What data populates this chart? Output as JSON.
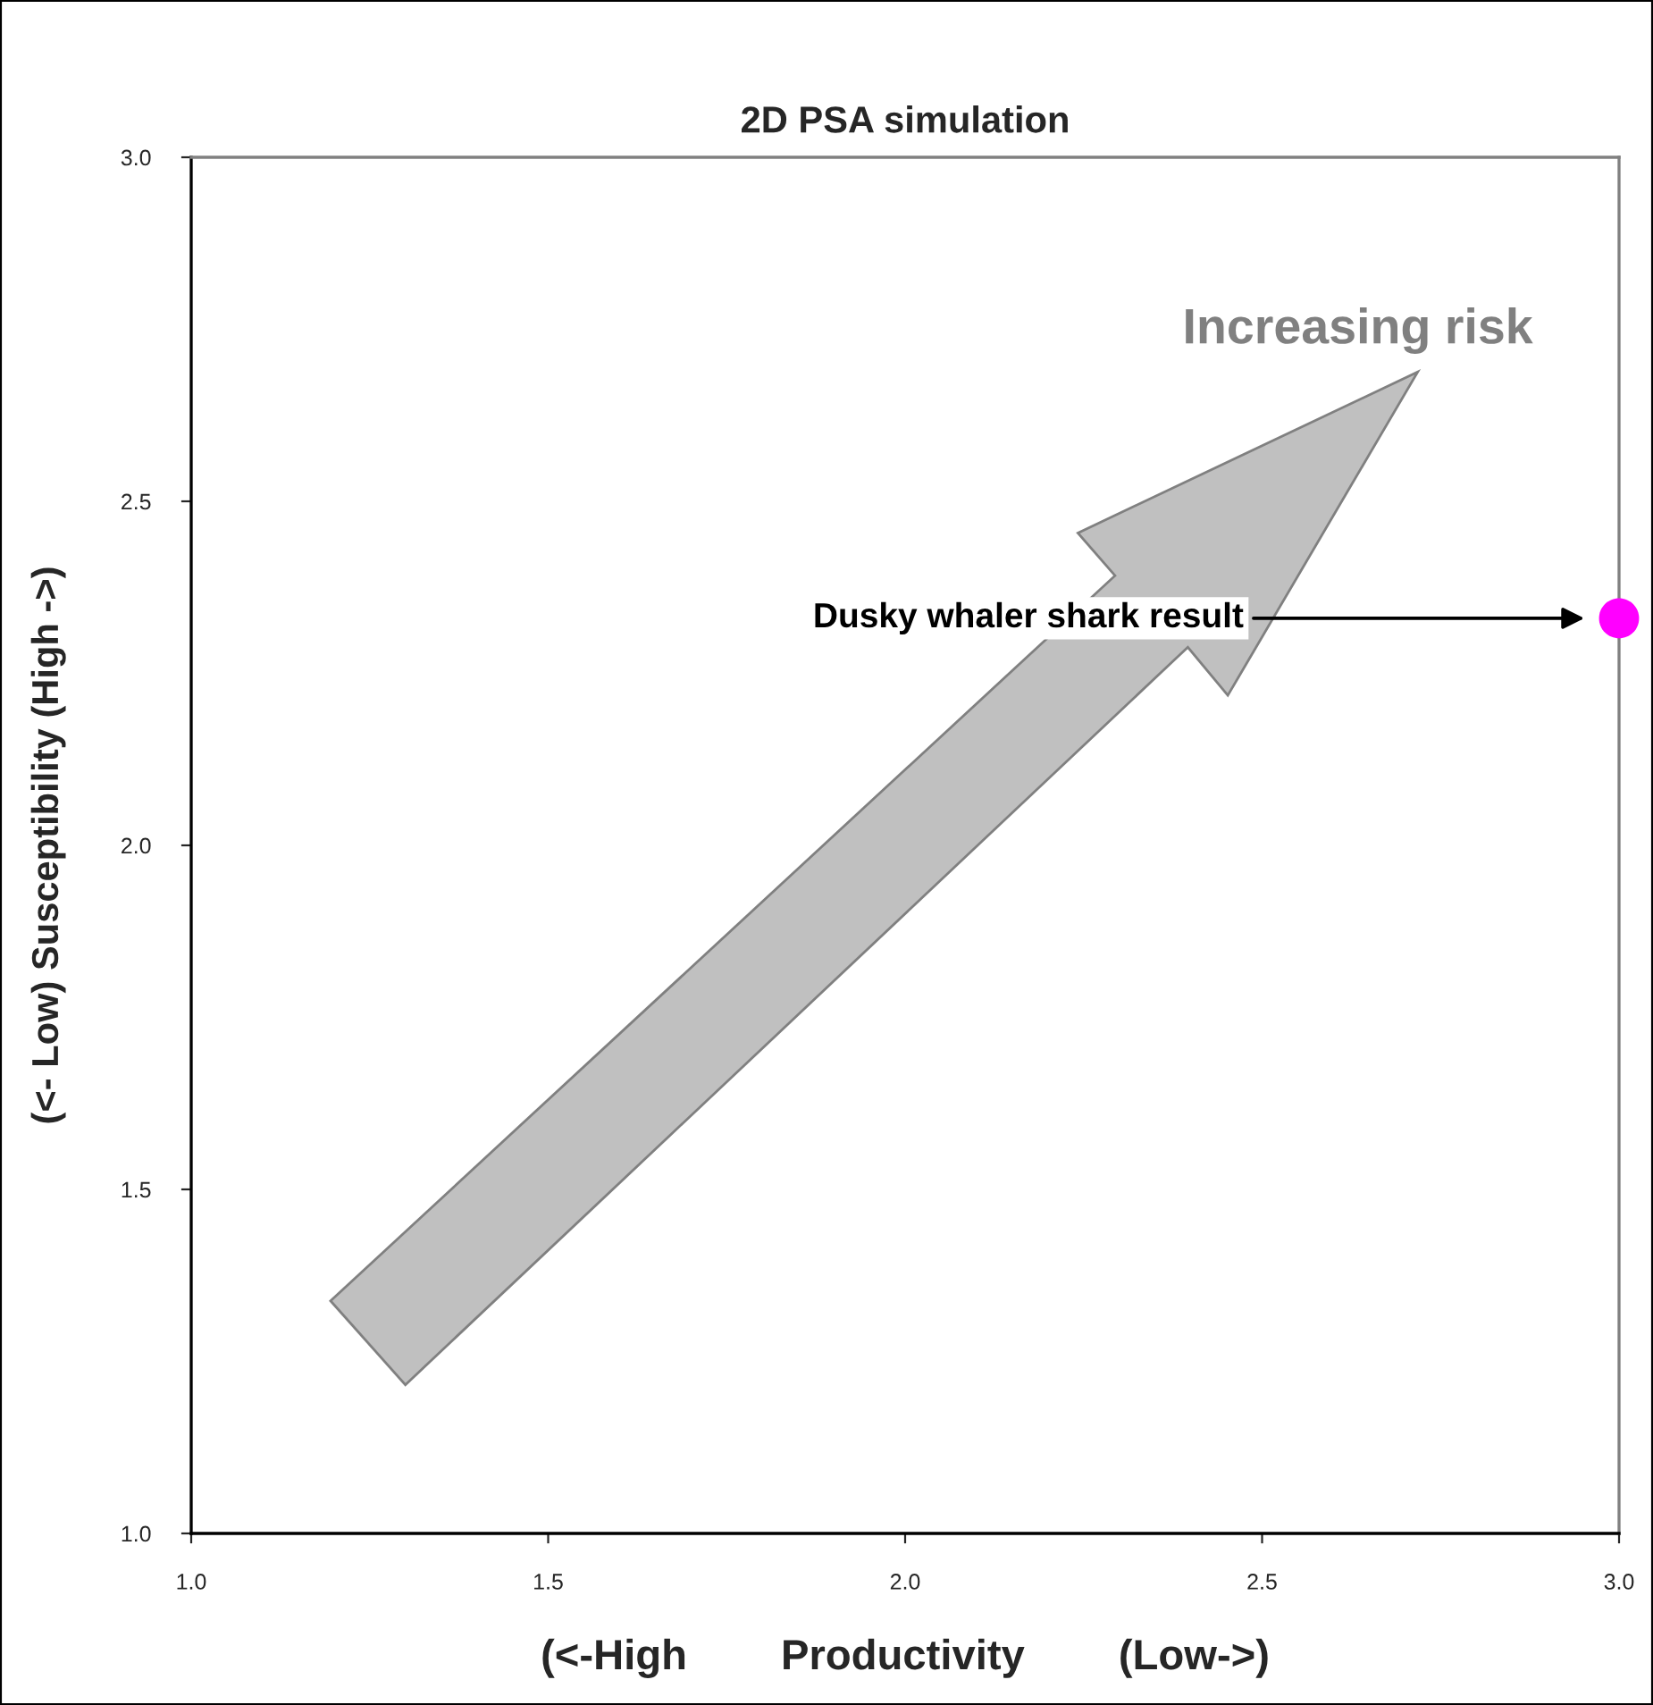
{
  "chart_data": {
    "type": "scatter",
    "title": "2D PSA simulation",
    "xlabel": "(<-High        Productivity        (Low->)",
    "ylabel": "(<- Low) Susceptibility (High ->)",
    "x": [
      3.0
    ],
    "series": [
      {
        "color": "#ff00ff",
        "values": [
          2.33
        ]
      }
    ],
    "marker": "circle",
    "xlim": [
      1.0,
      3.0
    ],
    "ylim": [
      1.0,
      3.0
    ],
    "xticks": [
      {
        "value": 1.0,
        "label": "1.0"
      },
      1.5,
      {
        "value": 2.0,
        "label": "2.0"
      },
      2.5,
      {
        "value": 3.0,
        "label": "3.0"
      }
    ],
    "yticks": [
      {
        "value": 1.0,
        "label": "1.0"
      },
      1.5,
      {
        "value": 2.0,
        "label": "2.0"
      },
      2.5,
      {
        "value": 3.0,
        "label": "3.0"
      }
    ],
    "grid": false,
    "legend": false,
    "annotations": [
      "Increasing risk",
      "Dusky whaler shark result"
    ]
  }
}
